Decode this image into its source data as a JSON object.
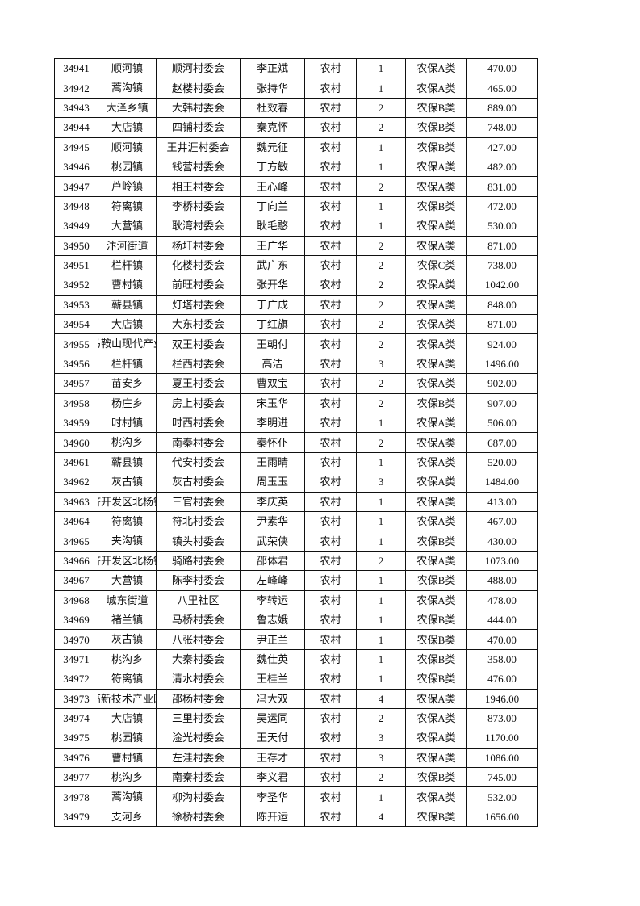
{
  "rows": [
    [
      "34941",
      "顺河镇",
      "顺河村委会",
      "李正斌",
      "农村",
      "1",
      "农保A类",
      "470.00"
    ],
    [
      "34942",
      "蒿沟镇",
      "赵楼村委会",
      "张持华",
      "农村",
      "1",
      "农保A类",
      "465.00"
    ],
    [
      "34943",
      "大泽乡镇",
      "大韩村委会",
      "杜效春",
      "农村",
      "2",
      "农保B类",
      "889.00"
    ],
    [
      "34944",
      "大店镇",
      "四铺村委会",
      "秦克怀",
      "农村",
      "2",
      "农保B类",
      "748.00"
    ],
    [
      "34945",
      "顺河镇",
      "王井涯村委会",
      "魏元征",
      "农村",
      "1",
      "农保B类",
      "427.00"
    ],
    [
      "34946",
      "桃园镇",
      "钱营村委会",
      "丁方敏",
      "农村",
      "1",
      "农保A类",
      "482.00"
    ],
    [
      "34947",
      "芦岭镇",
      "相王村委会",
      "王心峰",
      "农村",
      "2",
      "农保A类",
      "831.00"
    ],
    [
      "34948",
      "符离镇",
      "李桥村委会",
      "丁向兰",
      "农村",
      "1",
      "农保B类",
      "472.00"
    ],
    [
      "34949",
      "大营镇",
      "耿湾村委会",
      "耿毛憨",
      "农村",
      "1",
      "农保A类",
      "530.00"
    ],
    [
      "34950",
      "汴河街道",
      "杨圩村委会",
      "王广华",
      "农村",
      "2",
      "农保A类",
      "871.00"
    ],
    [
      "34951",
      "栏杆镇",
      "化楼村委会",
      "武广东",
      "农村",
      "2",
      "农保C类",
      "738.00"
    ],
    [
      "34952",
      "曹村镇",
      "前旺村委会",
      "张开华",
      "农村",
      "2",
      "农保A类",
      "1042.00"
    ],
    [
      "34953",
      "蕲县镇",
      "灯塔村委会",
      "于广成",
      "农村",
      "2",
      "农保A类",
      "848.00"
    ],
    [
      "34954",
      "大店镇",
      "大东村委会",
      "丁红旗",
      "农村",
      "2",
      "农保A类",
      "871.00"
    ],
    [
      "34955",
      "马鞍山现代产业",
      "双王村委会",
      "王朝付",
      "农村",
      "2",
      "农保A类",
      "924.00"
    ],
    [
      "34956",
      "栏杆镇",
      "栏西村委会",
      "高洁",
      "农村",
      "3",
      "农保A类",
      "1496.00"
    ],
    [
      "34957",
      "苗安乡",
      "夏王村委会",
      "曹双宝",
      "农村",
      "2",
      "农保A类",
      "902.00"
    ],
    [
      "34958",
      "杨庄乡",
      "房上村委会",
      "宋玉华",
      "农村",
      "2",
      "农保B类",
      "907.00"
    ],
    [
      "34959",
      "时村镇",
      "时西村委会",
      "李明进",
      "农村",
      "1",
      "农保A类",
      "506.00"
    ],
    [
      "34960",
      "桃沟乡",
      "南秦村委会",
      "秦怀仆",
      "农村",
      "2",
      "农保A类",
      "687.00"
    ],
    [
      "34961",
      "蕲县镇",
      "代安村委会",
      "王雨晴",
      "农村",
      "1",
      "农保A类",
      "520.00"
    ],
    [
      "34962",
      "灰古镇",
      "灰古村委会",
      "周玉玉",
      "农村",
      "3",
      "农保A类",
      "1484.00"
    ],
    [
      "34963",
      "济开发区北杨镇",
      "三官村委会",
      "李庆英",
      "农村",
      "1",
      "农保A类",
      "413.00"
    ],
    [
      "34964",
      "符离镇",
      "符北村委会",
      "尹素华",
      "农村",
      "1",
      "农保A类",
      "467.00"
    ],
    [
      "34965",
      "夹沟镇",
      "镇头村委会",
      "武荣侠",
      "农村",
      "1",
      "农保B类",
      "430.00"
    ],
    [
      "34966",
      "济开发区北杨镇",
      "骑路村委会",
      "邵体君",
      "农村",
      "2",
      "农保A类",
      "1073.00"
    ],
    [
      "34967",
      "大营镇",
      "陈李村委会",
      "左峰峰",
      "农村",
      "1",
      "农保B类",
      "488.00"
    ],
    [
      "34968",
      "城东街道",
      "八里社区",
      "李转运",
      "农村",
      "1",
      "农保A类",
      "478.00"
    ],
    [
      "34969",
      "褚兰镇",
      "马桥村委会",
      "鲁志娥",
      "农村",
      "1",
      "农保B类",
      "444.00"
    ],
    [
      "34970",
      "灰古镇",
      "八张村委会",
      "尹正兰",
      "农村",
      "1",
      "农保B类",
      "470.00"
    ],
    [
      "34971",
      "桃沟乡",
      "大秦村委会",
      "魏仕英",
      "农村",
      "1",
      "农保B类",
      "358.00"
    ],
    [
      "34972",
      "符离镇",
      "清水村委会",
      "王桂兰",
      "农村",
      "1",
      "农保B类",
      "476.00"
    ],
    [
      "34973",
      "高新技术产业园",
      "邵杨村委会",
      "冯大双",
      "农村",
      "4",
      "农保A类",
      "1946.00"
    ],
    [
      "34974",
      "大店镇",
      "三里村委会",
      "吴运同",
      "农村",
      "2",
      "农保A类",
      "873.00"
    ],
    [
      "34975",
      "桃园镇",
      "淦光村委会",
      "王天付",
      "农村",
      "3",
      "农保A类",
      "1170.00"
    ],
    [
      "34976",
      "曹村镇",
      "左洼村委会",
      "王存才",
      "农村",
      "3",
      "农保A类",
      "1086.00"
    ],
    [
      "34977",
      "桃沟乡",
      "南秦村委会",
      "李义君",
      "农村",
      "2",
      "农保B类",
      "745.00"
    ],
    [
      "34978",
      "蒿沟镇",
      "柳沟村委会",
      "李圣华",
      "农村",
      "1",
      "农保A类",
      "532.00"
    ],
    [
      "34979",
      "支河乡",
      "徐桥村委会",
      "陈开运",
      "农村",
      "4",
      "农保B类",
      "1656.00"
    ]
  ]
}
